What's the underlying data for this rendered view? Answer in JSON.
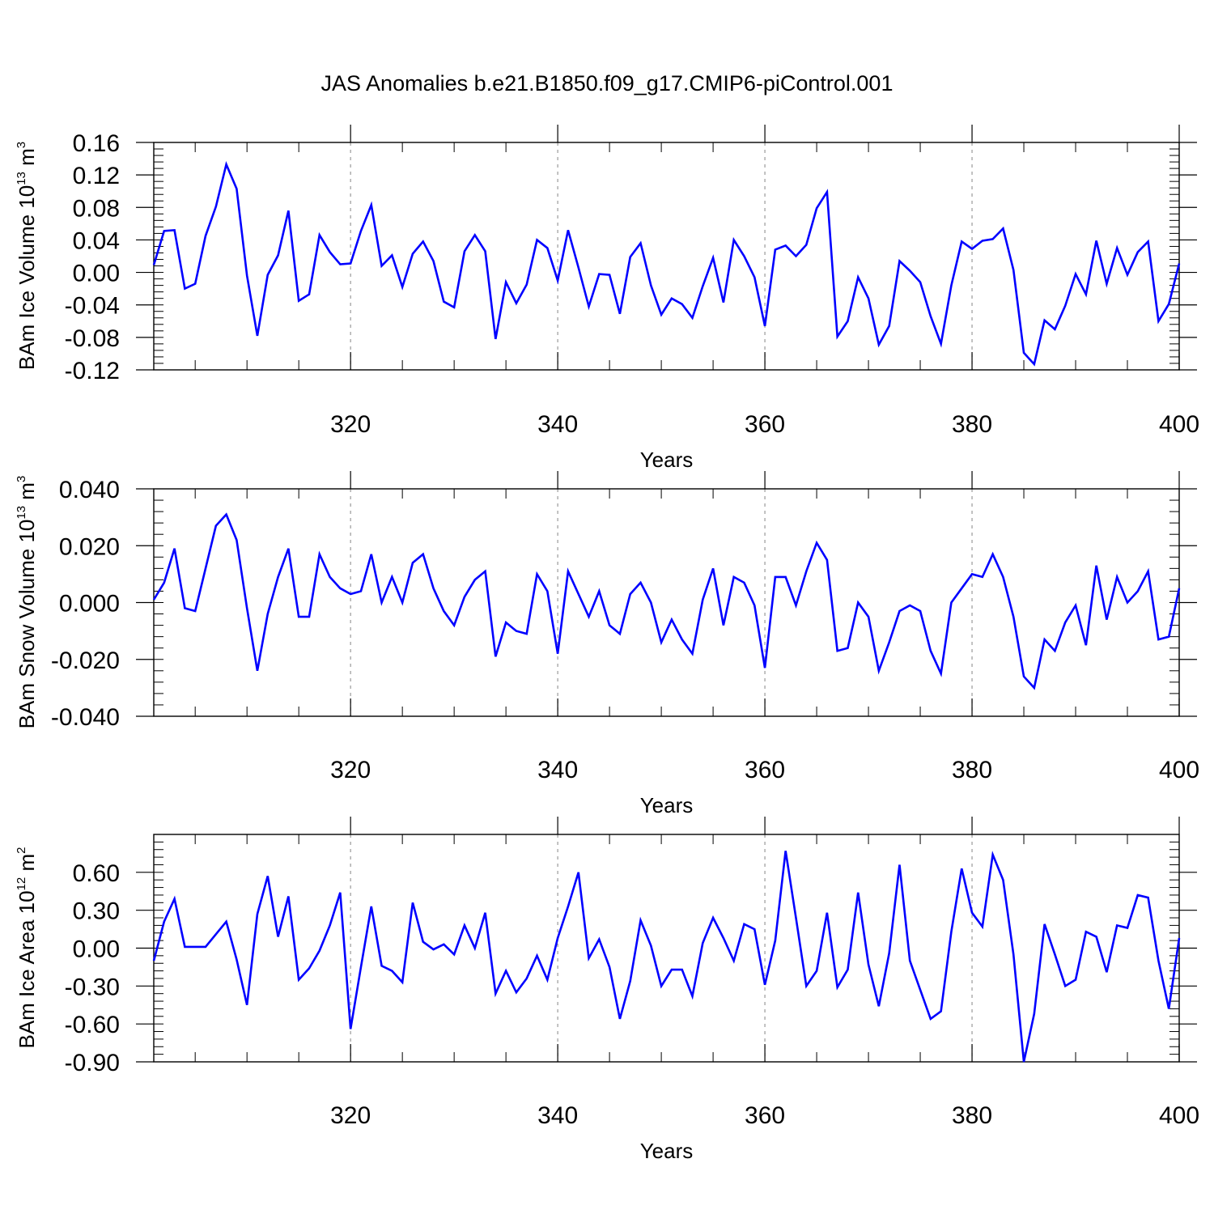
{
  "title": "JAS Anomalies b.e21.B1850.f09_g17.CMIP6-piControl.001",
  "colors": {
    "series": "#0000ff",
    "grid": "#999999",
    "axis": "#000000"
  },
  "chart_data": [
    {
      "type": "line",
      "ylabel": "BAm Ice Volume 10",
      "ylabel_sup": "13",
      "ylabel_unit": "m",
      "ylabel_unit_sup": "3",
      "xlabel": "Years",
      "xlim": [
        301,
        400
      ],
      "ylim": [
        -0.12,
        0.16
      ],
      "yticks": [
        "0.16",
        "0.12",
        "0.08",
        "0.04",
        "0.00",
        "-0.04",
        "-0.08",
        "-0.12"
      ],
      "ytick_values": [
        0.16,
        0.12,
        0.08,
        0.04,
        0.0,
        -0.04,
        -0.08,
        -0.12
      ],
      "yminor_step": 0.008,
      "xticks": [
        "320",
        "340",
        "360",
        "380",
        "400"
      ],
      "xtick_values": [
        320,
        340,
        360,
        380,
        400
      ],
      "x_start": 301,
      "values": [
        0.009,
        0.051,
        0.052,
        -0.02,
        -0.014,
        0.045,
        0.081,
        0.133,
        0.103,
        -0.004,
        -0.078,
        -0.003,
        0.021,
        0.076,
        -0.035,
        -0.027,
        0.046,
        0.025,
        0.01,
        0.011,
        0.051,
        0.083,
        0.008,
        0.021,
        -0.018,
        0.023,
        0.038,
        0.014,
        -0.036,
        -0.043,
        0.026,
        0.046,
        0.026,
        -0.082,
        -0.012,
        -0.038,
        -0.015,
        0.04,
        0.03,
        -0.01,
        0.052,
        0.006,
        -0.042,
        -0.002,
        -0.003,
        -0.051,
        0.019,
        0.036,
        -0.016,
        -0.052,
        -0.032,
        -0.039,
        -0.056,
        -0.017,
        0.018,
        -0.037,
        0.04,
        0.02,
        -0.006,
        -0.066,
        0.028,
        0.033,
        0.02,
        0.034,
        0.079,
        0.099,
        -0.079,
        -0.06,
        -0.006,
        -0.032,
        -0.089,
        -0.066,
        0.014,
        0.002,
        -0.012,
        -0.054,
        -0.088,
        -0.016,
        0.038,
        0.029,
        0.039,
        0.041,
        0.054,
        0.003,
        -0.099,
        -0.113,
        -0.059,
        -0.07,
        -0.041,
        -0.002,
        -0.027,
        0.039,
        -0.014,
        0.03,
        -0.003,
        0.025,
        0.038,
        -0.06,
        -0.039,
        0.011
      ]
    },
    {
      "type": "line",
      "ylabel": "BAm Snow Volume 10",
      "ylabel_sup": "13",
      "ylabel_unit": "m",
      "ylabel_unit_sup": "3",
      "xlabel": "Years",
      "xlim": [
        301,
        400
      ],
      "ylim": [
        -0.04,
        0.04
      ],
      "yticks": [
        "0.040",
        "0.020",
        "0.000",
        "-0.020",
        "-0.040"
      ],
      "ytick_values": [
        0.04,
        0.02,
        0.0,
        -0.02,
        -0.04
      ],
      "yminor_step": 0.004,
      "xticks": [
        "320",
        "340",
        "360",
        "380",
        "400"
      ],
      "xtick_values": [
        320,
        340,
        360,
        380,
        400
      ],
      "x_start": 301,
      "values": [
        0.001,
        0.007,
        0.019,
        -0.002,
        -0.003,
        0.012,
        0.027,
        0.031,
        0.022,
        -0.002,
        -0.024,
        -0.004,
        0.009,
        0.019,
        -0.005,
        -0.005,
        0.017,
        0.009,
        0.005,
        0.003,
        0.004,
        0.017,
        0.0,
        0.009,
        0.0,
        0.014,
        0.017,
        0.005,
        -0.003,
        -0.008,
        0.002,
        0.008,
        0.011,
        -0.019,
        -0.007,
        -0.01,
        -0.011,
        0.01,
        0.004,
        -0.018,
        0.011,
        0.003,
        -0.005,
        0.004,
        -0.008,
        -0.011,
        0.003,
        0.007,
        0.0,
        -0.014,
        -0.006,
        -0.013,
        -0.018,
        0.001,
        0.012,
        -0.008,
        0.009,
        0.007,
        -0.001,
        -0.023,
        0.009,
        0.009,
        -0.001,
        0.011,
        0.021,
        0.015,
        -0.017,
        -0.016,
        0.0,
        -0.005,
        -0.024,
        -0.014,
        -0.003,
        -0.001,
        -0.003,
        -0.017,
        -0.025,
        0.0,
        0.005,
        0.01,
        0.009,
        0.017,
        0.009,
        -0.005,
        -0.026,
        -0.03,
        -0.013,
        -0.017,
        -0.007,
        -0.001,
        -0.015,
        0.013,
        -0.006,
        0.009,
        0.0,
        0.004,
        0.011,
        -0.013,
        -0.012,
        0.005
      ]
    },
    {
      "type": "line",
      "ylabel": "BAm Ice Area 10",
      "ylabel_sup": "12",
      "ylabel_unit": "m",
      "ylabel_unit_sup": "2",
      "xlabel": "Years",
      "xlim": [
        301,
        400
      ],
      "ylim": [
        -0.9,
        0.9
      ],
      "yticks": [
        "0.60",
        "0.30",
        "0.00",
        "-0.30",
        "-0.60",
        "-0.90"
      ],
      "ytick_values": [
        0.6,
        0.3,
        0.0,
        -0.3,
        -0.6,
        -0.9
      ],
      "yminor_step": 0.06,
      "xticks": [
        "320",
        "340",
        "360",
        "380",
        "400"
      ],
      "xtick_values": [
        320,
        340,
        360,
        380,
        400
      ],
      "x_start": 301,
      "values": [
        -0.1,
        0.21,
        0.39,
        0.01,
        0.01,
        0.01,
        0.11,
        0.21,
        -0.09,
        -0.45,
        0.27,
        0.57,
        0.09,
        0.41,
        -0.25,
        -0.16,
        -0.02,
        0.18,
        0.44,
        -0.64,
        -0.15,
        0.33,
        -0.14,
        -0.18,
        -0.27,
        0.36,
        0.05,
        -0.01,
        0.03,
        -0.05,
        0.18,
        0.0,
        0.28,
        -0.36,
        -0.18,
        -0.35,
        -0.24,
        -0.06,
        -0.25,
        0.08,
        0.33,
        0.6,
        -0.08,
        0.07,
        -0.15,
        -0.56,
        -0.26,
        0.22,
        0.02,
        -0.3,
        -0.17,
        -0.17,
        -0.38,
        0.04,
        0.24,
        0.08,
        -0.1,
        0.19,
        0.15,
        -0.29,
        0.06,
        0.77,
        0.24,
        -0.3,
        -0.18,
        0.28,
        -0.31,
        -0.17,
        0.44,
        -0.13,
        -0.46,
        -0.04,
        0.66,
        -0.1,
        -0.33,
        -0.56,
        -0.5,
        0.13,
        0.63,
        0.28,
        0.17,
        0.74,
        0.54,
        -0.05,
        -0.9,
        -0.52,
        0.19,
        -0.05,
        -0.3,
        -0.25,
        0.13,
        0.09,
        -0.19,
        0.18,
        0.16,
        0.42,
        0.4,
        -0.1,
        -0.48,
        0.08
      ]
    }
  ]
}
